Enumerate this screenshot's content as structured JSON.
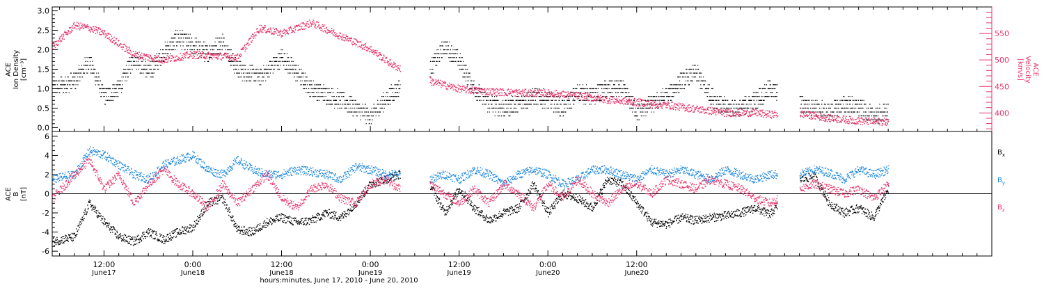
{
  "colors": {
    "black": "#000000",
    "pink": "#e8336a",
    "blue": "#1a86e0"
  },
  "chart_data": [
    {
      "type": "scatter",
      "panel": "plasma",
      "ylabel_lines": [
        "ACE",
        "Ion Density",
        "[cm⁻³]"
      ],
      "y2label_lines": [
        "ACE",
        "Velocity",
        "[km/s]"
      ],
      "xlim_hours": [
        5,
        132
      ],
      "ylim": [
        -0.1,
        3.1
      ],
      "y2lim": [
        365,
        600
      ],
      "yticks": [
        "0.0",
        "0.5",
        "1.0",
        "1.5",
        "2.0",
        "2.5",
        "3.0"
      ],
      "y2ticks": [
        "400",
        "450",
        "500",
        "550"
      ],
      "gaps_hours": [
        [
          52,
          56
        ],
        [
          103,
          106
        ]
      ],
      "end_hours": 118,
      "series": [
        {
          "name": "",
          "axis": "left",
          "color": "black",
          "x": [
            5,
            8,
            10,
            12,
            14,
            16,
            18,
            20,
            22,
            24,
            26,
            28,
            30,
            33,
            36,
            40,
            44,
            48,
            51,
            56,
            58,
            60,
            62,
            64,
            66,
            68,
            70,
            72,
            74,
            76,
            78,
            80,
            82,
            84,
            86,
            88,
            90,
            92,
            94,
            96,
            98,
            100,
            102,
            106,
            108,
            110,
            112,
            114,
            116,
            118
          ],
          "values": [
            1.0,
            1.2,
            1.7,
            0.8,
            1.0,
            1.8,
            1.4,
            1.9,
            2.3,
            2.1,
            1.9,
            2.2,
            1.5,
            1.3,
            1.8,
            1.0,
            0.7,
            0.3,
            0.9,
            1.5,
            2.1,
            1.7,
            1.0,
            0.6,
            0.5,
            0.6,
            0.8,
            0.7,
            0.5,
            0.9,
            0.8,
            1.0,
            1.0,
            0.4,
            0.6,
            0.8,
            1.2,
            1.4,
            0.8,
            0.5,
            0.5,
            0.7,
            1.0,
            0.6,
            0.5,
            0.4,
            0.6,
            0.5,
            0.3,
            0.4
          ]
        },
        {
          "name": "",
          "axis": "right",
          "color": "pink",
          "x": [
            5,
            8,
            10,
            12,
            16,
            20,
            24,
            30,
            33,
            36,
            40,
            44,
            48,
            51,
            56,
            60,
            64,
            68,
            72,
            76,
            80,
            84,
            88,
            92,
            96,
            100,
            102,
            106,
            110,
            114,
            118
          ],
          "values": [
            525,
            565,
            560,
            550,
            510,
            500,
            510,
            505,
            560,
            550,
            570,
            545,
            520,
            490,
            460,
            445,
            440,
            438,
            437,
            432,
            425,
            420,
            415,
            407,
            400,
            400,
            397,
            398,
            390,
            385,
            383
          ]
        }
      ]
    },
    {
      "type": "scatter",
      "panel": "magnetic-field",
      "ylabel_lines": [
        "ACE",
        "B",
        "[nT]"
      ],
      "xlim_hours": [
        5,
        132
      ],
      "ylim": [
        -6.5,
        6.5
      ],
      "yticks": [
        "-6",
        "-4",
        "-2",
        "0",
        "2",
        "4",
        "6"
      ],
      "zero_line": true,
      "gaps_hours": [
        [
          52,
          56
        ],
        [
          103,
          106
        ]
      ],
      "end_hours": 118,
      "series": [
        {
          "name": "Bx",
          "name_base": "B",
          "name_sub": "x",
          "color": "black",
          "x": [
            5,
            8,
            10,
            12,
            14,
            16,
            18,
            20,
            22,
            24,
            26,
            28,
            30,
            32,
            34,
            36,
            38,
            40,
            42,
            44,
            46,
            48,
            50,
            52,
            56,
            58,
            60,
            62,
            64,
            66,
            68,
            70,
            72,
            74,
            76,
            78,
            80,
            82,
            84,
            86,
            88,
            90,
            92,
            94,
            96,
            98,
            100,
            102,
            106,
            108,
            110,
            112,
            114,
            116,
            118
          ],
          "values": [
            -5.0,
            -4.5,
            -1.0,
            -3.0,
            -4.5,
            -5.0,
            -4.0,
            -4.8,
            -4.0,
            -3.5,
            -1.0,
            -0.5,
            -3.8,
            -4.0,
            -3.0,
            -2.5,
            -3.0,
            -2.8,
            -2.0,
            -2.5,
            -1.0,
            1.0,
            1.5,
            2.0,
            1.0,
            -2.0,
            0.5,
            -1.5,
            -2.8,
            -2.0,
            -1.5,
            1.0,
            -2.0,
            0.0,
            -0.5,
            -1.5,
            1.5,
            1.0,
            -1.0,
            -3.0,
            -3.2,
            -2.5,
            -2.8,
            -2.5,
            -2.3,
            -2.0,
            -1.5,
            -2.2,
            1.5,
            1.8,
            -1.0,
            -2.0,
            -1.5,
            -2.5,
            0.5
          ]
        },
        {
          "name": "By",
          "name_base": "B",
          "name_sub": "y",
          "color": "blue",
          "x": [
            5,
            8,
            10,
            12,
            14,
            16,
            18,
            20,
            22,
            24,
            26,
            28,
            30,
            32,
            34,
            36,
            38,
            40,
            42,
            44,
            46,
            48,
            50,
            52,
            56,
            58,
            60,
            62,
            64,
            66,
            68,
            70,
            72,
            74,
            76,
            78,
            80,
            82,
            84,
            86,
            88,
            90,
            92,
            94,
            96,
            98,
            100,
            102,
            106,
            108,
            110,
            112,
            114,
            116,
            118
          ],
          "values": [
            1.5,
            2.0,
            4.5,
            4.0,
            3.0,
            2.0,
            1.5,
            3.0,
            3.5,
            4.0,
            2.5,
            2.0,
            3.5,
            2.5,
            2.0,
            2.0,
            2.5,
            2.3,
            2.0,
            1.5,
            2.8,
            2.5,
            2.0,
            2.0,
            1.5,
            2.0,
            1.5,
            2.5,
            2.0,
            1.0,
            2.0,
            2.5,
            2.0,
            1.0,
            1.5,
            2.5,
            2.5,
            2.0,
            1.5,
            2.5,
            2.0,
            2.5,
            2.0,
            1.5,
            2.5,
            2.0,
            1.5,
            2.0,
            2.0,
            2.5,
            2.2,
            1.5,
            2.5,
            2.0,
            2.5
          ]
        },
        {
          "name": "Bz",
          "name_base": "B",
          "name_sub": "z",
          "color": "pink",
          "x": [
            5,
            8,
            10,
            12,
            14,
            16,
            18,
            20,
            22,
            24,
            26,
            28,
            30,
            32,
            34,
            36,
            38,
            40,
            42,
            44,
            46,
            48,
            50,
            52,
            56,
            58,
            60,
            62,
            64,
            66,
            68,
            70,
            72,
            74,
            76,
            78,
            80,
            82,
            84,
            86,
            88,
            90,
            92,
            94,
            96,
            98,
            100,
            102,
            106,
            108,
            110,
            112,
            114,
            116,
            118
          ],
          "values": [
            -0.5,
            2.0,
            3.5,
            0.5,
            2.0,
            -1.0,
            1.0,
            2.5,
            1.0,
            0.0,
            -1.5,
            1.0,
            -1.0,
            0.5,
            2.0,
            -0.5,
            -1.5,
            0.5,
            1.0,
            -0.5,
            -1.0,
            1.0,
            1.5,
            0.5,
            1.0,
            0.0,
            -1.0,
            0.5,
            -1.0,
            1.0,
            0.0,
            -1.5,
            1.0,
            -0.5,
            1.5,
            0.0,
            -1.0,
            0.5,
            1.0,
            0.0,
            1.5,
            1.0,
            0.5,
            1.5,
            1.0,
            0.5,
            -0.5,
            -1.0,
            0.5,
            1.0,
            0.5,
            0.0,
            0.5,
            -0.5,
            1.0
          ]
        }
      ]
    }
  ],
  "xaxis": {
    "label": "hours:minutes, June 17, 2010 - June 20, 2010",
    "ticks": [
      {
        "hours": 12,
        "time": "12:00",
        "date": "June17"
      },
      {
        "hours": 24,
        "time": "0:00",
        "date": "June18"
      },
      {
        "hours": 36,
        "time": "12:00",
        "date": "June18"
      },
      {
        "hours": 48,
        "time": "0:00",
        "date": "June19"
      },
      {
        "hours": 60,
        "time": "12:00",
        "date": "June19"
      },
      {
        "hours": 72,
        "time": "0:00",
        "date": "June20"
      },
      {
        "hours": 84,
        "time": "12:00",
        "date": "June20"
      }
    ]
  }
}
